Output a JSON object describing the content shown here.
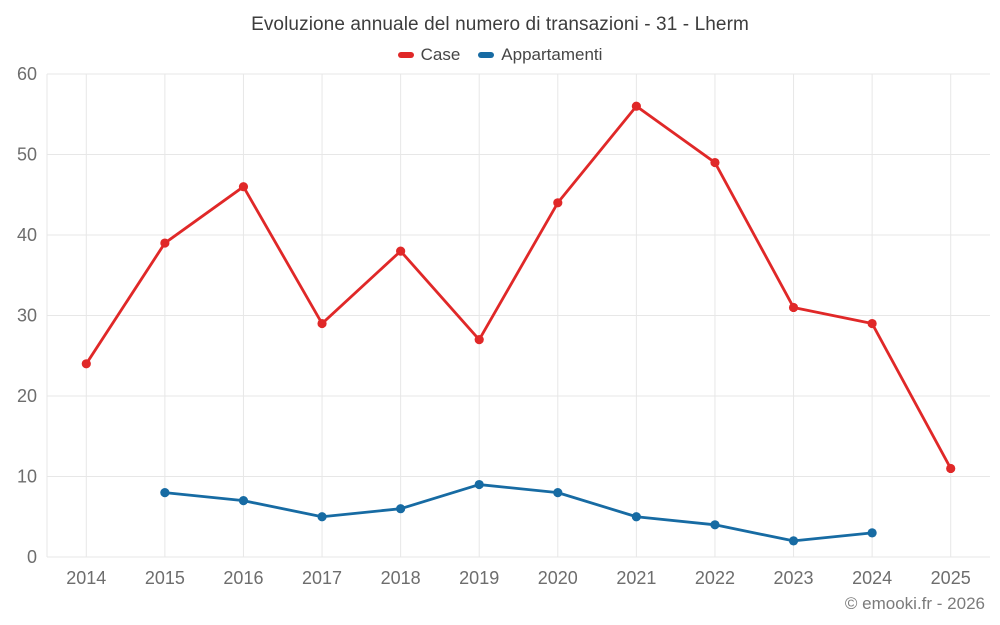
{
  "title": "Evoluzione annuale del numero di transazioni - 31 - Lherm",
  "footer_credit": "© emooki.fr - 2026",
  "colors": {
    "case_red": "#e02828",
    "appartamenti_blue": "#176ba3",
    "gridline": "#e7e7e7",
    "tick_label": "#6d6d6d",
    "title_text": "#3d3d3d",
    "background": "#ffffff"
  },
  "legend": {
    "position": "top",
    "items": [
      {
        "label": "Case",
        "color": "#e02828"
      },
      {
        "label": "Appartamenti",
        "color": "#176ba3"
      }
    ]
  },
  "chart_data": {
    "type": "line",
    "title": "Evoluzione annuale del numero di transazioni - 31 - Lherm",
    "categories": [
      "2014",
      "2015",
      "2016",
      "2017",
      "2018",
      "2019",
      "2020",
      "2021",
      "2022",
      "2023",
      "2024",
      "2025"
    ],
    "series": [
      {
        "name": "Case",
        "color": "#e02828",
        "values": [
          24,
          39,
          46,
          29,
          38,
          27,
          44,
          56,
          49,
          31,
          29,
          11
        ]
      },
      {
        "name": "Appartamenti",
        "color": "#176ba3",
        "values": [
          null,
          8,
          7,
          5,
          6,
          9,
          8,
          5,
          4,
          2,
          3,
          null
        ]
      }
    ],
    "xlabel": "",
    "ylabel": "",
    "ylim": [
      0,
      60
    ],
    "yticks": [
      0,
      10,
      20,
      30,
      40,
      50,
      60
    ],
    "grid": true,
    "legend_position": "top"
  }
}
